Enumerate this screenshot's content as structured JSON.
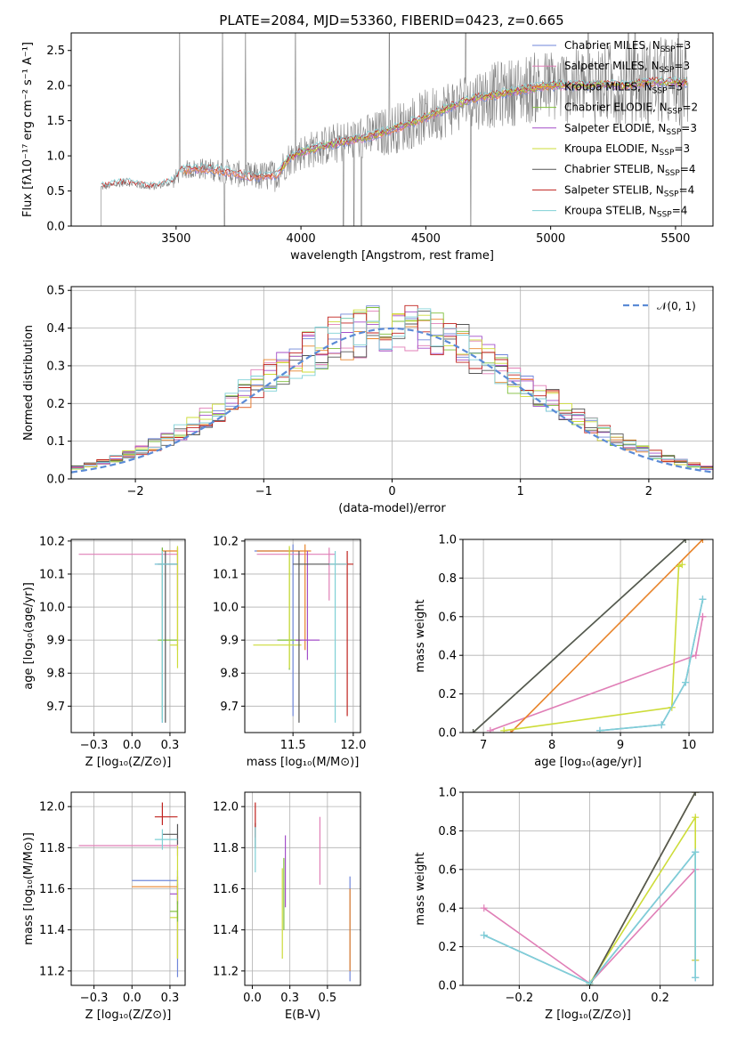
{
  "figure": {
    "title": "PLATE=2084, MJD=53360, FIBERID=0423, z=0.665"
  },
  "models": [
    {
      "name": "Chabrier MILES",
      "nssp": "3",
      "color": "#6f86d9"
    },
    {
      "name": "Salpeter MILES",
      "nssp": "3",
      "color": "#e07fb7"
    },
    {
      "name": "Kroupa MILES",
      "nssp": "3",
      "color": "#e8842b"
    },
    {
      "name": "Chabrier ELODIE",
      "nssp": "2",
      "color": "#7fbf3a"
    },
    {
      "name": "Salpeter ELODIE",
      "nssp": "3",
      "color": "#a34fc9"
    },
    {
      "name": "Kroupa ELODIE",
      "nssp": "3",
      "color": "#cddc39"
    },
    {
      "name": "Chabrier STELIB",
      "nssp": "4",
      "color": "#555555"
    },
    {
      "name": "Salpeter STELIB",
      "nssp": "4",
      "color": "#c0221e"
    },
    {
      "name": "Kroupa STELIB",
      "nssp": "4",
      "color": "#7fd0d6"
    }
  ],
  "legend_sub": "SSP",
  "legend_prefix": "N",
  "chart_data": [
    {
      "id": "spectrum",
      "type": "line",
      "xlabel": "wavelength [Angstrom, rest frame]",
      "ylabel": "Flux [fλ10⁻¹⁷ erg cm⁻² s⁻¹ A⁻¹]",
      "xlim": [
        3080,
        5650
      ],
      "ylim": [
        0,
        2.75
      ],
      "xticks": [
        3500,
        4000,
        4500,
        5000,
        5500
      ],
      "yticks": [
        0.0,
        0.5,
        1.0,
        1.5,
        2.0,
        2.5
      ],
      "data_range": [
        3200,
        5550
      ],
      "legend": "top-right",
      "grid": false,
      "model_continuum": {
        "x": [
          3200,
          3300,
          3400,
          3480,
          3530,
          3600,
          3700,
          3800,
          3900,
          3950,
          4000,
          4100,
          4200,
          4300,
          4400,
          4500,
          4600,
          4700,
          4800,
          4900,
          5000,
          5100,
          5200,
          5300,
          5400,
          5500
        ],
        "y": [
          0.55,
          0.62,
          0.55,
          0.62,
          0.8,
          0.82,
          0.78,
          0.7,
          0.72,
          0.95,
          1.05,
          1.15,
          1.22,
          1.3,
          1.42,
          1.55,
          1.7,
          1.82,
          1.88,
          1.95,
          2.0,
          2.0,
          2.02,
          2.0,
          2.05,
          2.05
        ]
      }
    },
    {
      "id": "residuals",
      "type": "histogram",
      "xlabel": "(data-model)/error",
      "ylabel": "Normed distribution",
      "xlim": [
        -2.5,
        2.5
      ],
      "ylim": [
        0,
        0.51
      ],
      "xticks": [
        -2,
        -1,
        0,
        1,
        2
      ],
      "yticks": [
        0.0,
        0.1,
        0.2,
        0.3,
        0.4,
        0.5
      ],
      "grid": true,
      "legend": "top-right",
      "reference_label": "𝒩(0, 1)",
      "reference_color": "#5b8bd6",
      "bin_width": 0.1
    },
    {
      "id": "age-Z",
      "type": "errorbar",
      "xlabel": "Z [log₁₀(Z/Z⊙)]",
      "ylabel": "age  [log₁₀(age/yr)]",
      "xlim": [
        -0.4,
        0.35
      ],
      "ylim": [
        9.62,
        10.205
      ],
      "xticks": [
        -0.25,
        0.0,
        0.25
      ],
      "yticks": [
        9.7,
        9.8,
        9.9,
        10.0,
        10.1,
        10.2
      ],
      "grid": true,
      "points": [
        {
          "m": 0,
          "x": 0.2,
          "y": 10.13,
          "xerr": [
            0.05,
            0.1
          ],
          "yerr": [
            0.48,
            0.05
          ]
        },
        {
          "m": 1,
          "x": 0.3,
          "y": 10.16,
          "xerr": [
            0.65,
            0.0
          ],
          "yerr": [
            0.14,
            0.02
          ]
        },
        {
          "m": 2,
          "x": 0.3,
          "y": 10.17,
          "xerr": [
            0.1,
            0.0
          ],
          "yerr": [
            0.3,
            0.01
          ]
        },
        {
          "m": 3,
          "x": 0.2,
          "y": 9.9,
          "xerr": [
            0.03,
            0.1
          ],
          "yerr": [
            0.24,
            0.28
          ]
        },
        {
          "m": 5,
          "x": 0.3,
          "y": 9.885,
          "xerr": [
            0.05,
            0.0
          ],
          "yerr": [
            0.07,
            0.3
          ]
        },
        {
          "m": 6,
          "x": 0.22,
          "y": 10.13,
          "xerr": [
            0.05,
            0.08
          ],
          "yerr": [
            0.48,
            0.04
          ]
        },
        {
          "m": 8,
          "x": 0.2,
          "y": 10.13,
          "xerr": [
            0.05,
            0.1
          ],
          "yerr": [
            0.48,
            0.04
          ]
        }
      ]
    },
    {
      "id": "age-mass",
      "type": "errorbar",
      "xlabel": "mass [log₁₀(M/M⊙)]",
      "ylabel": "",
      "xlim": [
        11.1,
        12.06
      ],
      "ylim": [
        9.62,
        10.205
      ],
      "xticks": [
        11.5,
        12.0
      ],
      "yticks": [
        9.7,
        9.8,
        9.9,
        10.0,
        10.1,
        10.2
      ],
      "grid": true,
      "points": [
        {
          "m": 0,
          "x": 11.5,
          "y": 10.17,
          "xerr": [
            0.32,
            0.05
          ],
          "yerr": [
            0.5,
            0.02
          ]
        },
        {
          "m": 1,
          "x": 11.8,
          "y": 10.16,
          "xerr": [
            0.6,
            0.05
          ],
          "yerr": [
            0.14,
            0.02
          ]
        },
        {
          "m": 2,
          "x": 11.6,
          "y": 10.17,
          "xerr": [
            0.4,
            0.05
          ],
          "yerr": [
            0.3,
            0.02
          ]
        },
        {
          "m": 3,
          "x": 11.47,
          "y": 9.9,
          "xerr": [
            0.1,
            0.1
          ],
          "yerr": [
            0.09,
            0.28
          ]
        },
        {
          "m": 4,
          "x": 11.62,
          "y": 9.9,
          "xerr": [
            0.1,
            0.1
          ],
          "yerr": [
            0.06,
            0.27
          ]
        },
        {
          "m": 5,
          "x": 11.47,
          "y": 9.885,
          "xerr": [
            0.3,
            0.1
          ],
          "yerr": [
            0.07,
            0.3
          ]
        },
        {
          "m": 6,
          "x": 11.55,
          "y": 10.13,
          "xerr": [
            0.05,
            0.3
          ],
          "yerr": [
            0.48,
            0.04
          ]
        },
        {
          "m": 7,
          "x": 11.95,
          "y": 10.13,
          "xerr": [
            0.1,
            0.05
          ],
          "yerr": [
            0.46,
            0.04
          ]
        },
        {
          "m": 8,
          "x": 11.85,
          "y": 10.13,
          "xerr": [
            0.05,
            0.1
          ],
          "yerr": [
            0.48,
            0.04
          ]
        }
      ]
    },
    {
      "id": "massweight-age",
      "type": "line",
      "xlabel": "age  [log₁₀(age/yr)]",
      "ylabel": "mass weight",
      "xlim": [
        6.7,
        10.35
      ],
      "ylim": [
        0,
        1.0
      ],
      "xticks": [
        7,
        8,
        9,
        10
      ],
      "yticks": [
        0.0,
        0.2,
        0.4,
        0.6,
        0.8,
        1.0
      ],
      "grid": true,
      "series": [
        {
          "m": 0,
          "x": [
            8.7,
            9.6,
            9.95,
            10.2
          ],
          "y": [
            0.01,
            0.04,
            0.26,
            0.69
          ]
        },
        {
          "m": 1,
          "x": [
            7.1,
            10.1,
            10.2,
            10.2
          ],
          "y": [
            0.01,
            0.4,
            0.6,
            0.6
          ]
        },
        {
          "m": 2,
          "x": [
            7.4,
            10.2
          ],
          "y": [
            0.0,
            1.0
          ]
        },
        {
          "m": 3,
          "x": [
            6.85,
            9.95
          ],
          "y": [
            0.0,
            1.0
          ]
        },
        {
          "m": 5,
          "x": [
            7.3,
            9.75,
            9.85,
            9.9
          ],
          "y": [
            0.01,
            0.13,
            0.86,
            0.87
          ]
        },
        {
          "m": 6,
          "x": [
            6.85,
            9.95
          ],
          "y": [
            0.0,
            1.0
          ]
        },
        {
          "m": 8,
          "x": [
            8.7,
            9.6,
            9.95,
            10.2
          ],
          "y": [
            0.01,
            0.04,
            0.26,
            0.69
          ]
        }
      ]
    },
    {
      "id": "mass-Z",
      "type": "errorbar",
      "xlabel": "Z [log₁₀(Z/Z⊙)]",
      "ylabel": "mass [log₁₀(M/M⊙)]",
      "xlim": [
        -0.4,
        0.35
      ],
      "ylim": [
        11.13,
        12.07
      ],
      "xticks": [
        -0.25,
        0.0,
        0.25
      ],
      "yticks": [
        11.2,
        11.4,
        11.6,
        11.8,
        12.0
      ],
      "grid": true,
      "points": [
        {
          "m": 0,
          "x": 0.3,
          "y": 11.64,
          "xerr": [
            0.3,
            0.0
          ],
          "yerr": [
            0.47,
            0.05
          ]
        },
        {
          "m": 1,
          "x": 0.3,
          "y": 11.81,
          "xerr": [
            0.65,
            0.0
          ],
          "yerr": [
            0.05,
            0.05
          ]
        },
        {
          "m": 2,
          "x": 0.3,
          "y": 11.61,
          "xerr": [
            0.3,
            0.0
          ],
          "yerr": [
            0.35,
            0.05
          ]
        },
        {
          "m": 4,
          "x": 0.3,
          "y": 11.575,
          "xerr": [
            0.05,
            0.0
          ],
          "yerr": [
            0.05,
            0.05
          ]
        },
        {
          "m": 5,
          "x": 0.3,
          "y": 11.46,
          "xerr": [
            0.05,
            0.0
          ],
          "yerr": [
            0.2,
            0.35
          ]
        },
        {
          "m": 6,
          "x": 0.3,
          "y": 11.865,
          "xerr": [
            0.1,
            0.0
          ],
          "yerr": [
            0.05,
            0.05
          ]
        },
        {
          "m": 3,
          "x": 0.3,
          "y": 11.49,
          "xerr": [
            0.05,
            0.0
          ],
          "yerr": [
            0.05,
            0.05
          ]
        },
        {
          "m": 7,
          "x": 0.2,
          "y": 11.95,
          "xerr": [
            0.05,
            0.1
          ],
          "yerr": [
            0.04,
            0.07
          ]
        },
        {
          "m": 8,
          "x": 0.2,
          "y": 11.84,
          "xerr": [
            0.05,
            0.1
          ],
          "yerr": [
            0.05,
            0.05
          ]
        }
      ]
    },
    {
      "id": "mass-EBV",
      "type": "errorbar",
      "xlabel": "E(B-V)",
      "ylabel": "",
      "xlim": [
        -0.05,
        0.72
      ],
      "ylim": [
        11.13,
        12.07
      ],
      "xticks": [
        0.0,
        0.25,
        0.5
      ],
      "yticks": [
        11.2,
        11.4,
        11.6,
        11.8,
        12.0
      ],
      "grid": true,
      "points": [
        {
          "m": 0,
          "x": 0.65,
          "y": 11.5,
          "xerr": [
            0,
            0
          ],
          "yerr": [
            0.35,
            0.16
          ]
        },
        {
          "m": 1,
          "x": 0.45,
          "y": 11.8,
          "xerr": [
            0,
            0
          ],
          "yerr": [
            0.18,
            0.15
          ]
        },
        {
          "m": 2,
          "x": 0.65,
          "y": 11.45,
          "xerr": [
            0,
            0
          ],
          "yerr": [
            0.25,
            0.15
          ]
        },
        {
          "m": 3,
          "x": 0.21,
          "y": 11.55,
          "xerr": [
            0,
            0
          ],
          "yerr": [
            0.15,
            0.2
          ]
        },
        {
          "m": 4,
          "x": 0.22,
          "y": 11.7,
          "xerr": [
            0,
            0
          ],
          "yerr": [
            0.19,
            0.16
          ]
        },
        {
          "m": 5,
          "x": 0.2,
          "y": 11.55,
          "xerr": [
            0,
            0
          ],
          "yerr": [
            0.29,
            0.15
          ]
        },
        {
          "m": 6,
          "x": 0.02,
          "y": 11.85,
          "xerr": [
            0,
            0
          ],
          "yerr": [
            0.05,
            0.07
          ]
        },
        {
          "m": 7,
          "x": 0.02,
          "y": 11.9,
          "xerr": [
            0,
            0
          ],
          "yerr": [
            0.05,
            0.12
          ]
        },
        {
          "m": 8,
          "x": 0.02,
          "y": 11.78,
          "xerr": [
            0,
            0
          ],
          "yerr": [
            0.1,
            0.12
          ]
        }
      ]
    },
    {
      "id": "massweight-Z",
      "type": "line",
      "xlabel": "Z [log₁₀(Z/Z⊙)]",
      "ylabel": "mass weight",
      "xlim": [
        -0.36,
        0.35
      ],
      "ylim": [
        0,
        1.0
      ],
      "xticks": [
        -0.2,
        0.0,
        0.2
      ],
      "yticks": [
        0.0,
        0.2,
        0.4,
        0.6,
        0.8,
        1.0
      ],
      "grid": true,
      "series": [
        {
          "m": 0,
          "x": [
            -0.3,
            0.0,
            0.3,
            0.3
          ],
          "y": [
            0.26,
            0.01,
            0.69,
            0.04
          ]
        },
        {
          "m": 1,
          "x": [
            -0.3,
            0.0,
            0.3,
            0.3
          ],
          "y": [
            0.4,
            0.01,
            0.6,
            0.13
          ]
        },
        {
          "m": 2,
          "x": [
            0.0,
            0.3
          ],
          "y": [
            0.0,
            1.0
          ]
        },
        {
          "m": 3,
          "x": [
            0.0,
            0.3
          ],
          "y": [
            0.0,
            1.0
          ]
        },
        {
          "m": 5,
          "x": [
            0.0,
            0.3,
            0.3
          ],
          "y": [
            0.01,
            0.87,
            0.13
          ]
        },
        {
          "m": 6,
          "x": [
            0.0,
            0.3
          ],
          "y": [
            0.0,
            1.0
          ]
        },
        {
          "m": 8,
          "x": [
            -0.3,
            0.0,
            0.3,
            0.3
          ],
          "y": [
            0.26,
            0.01,
            0.69,
            0.04
          ]
        }
      ]
    }
  ]
}
